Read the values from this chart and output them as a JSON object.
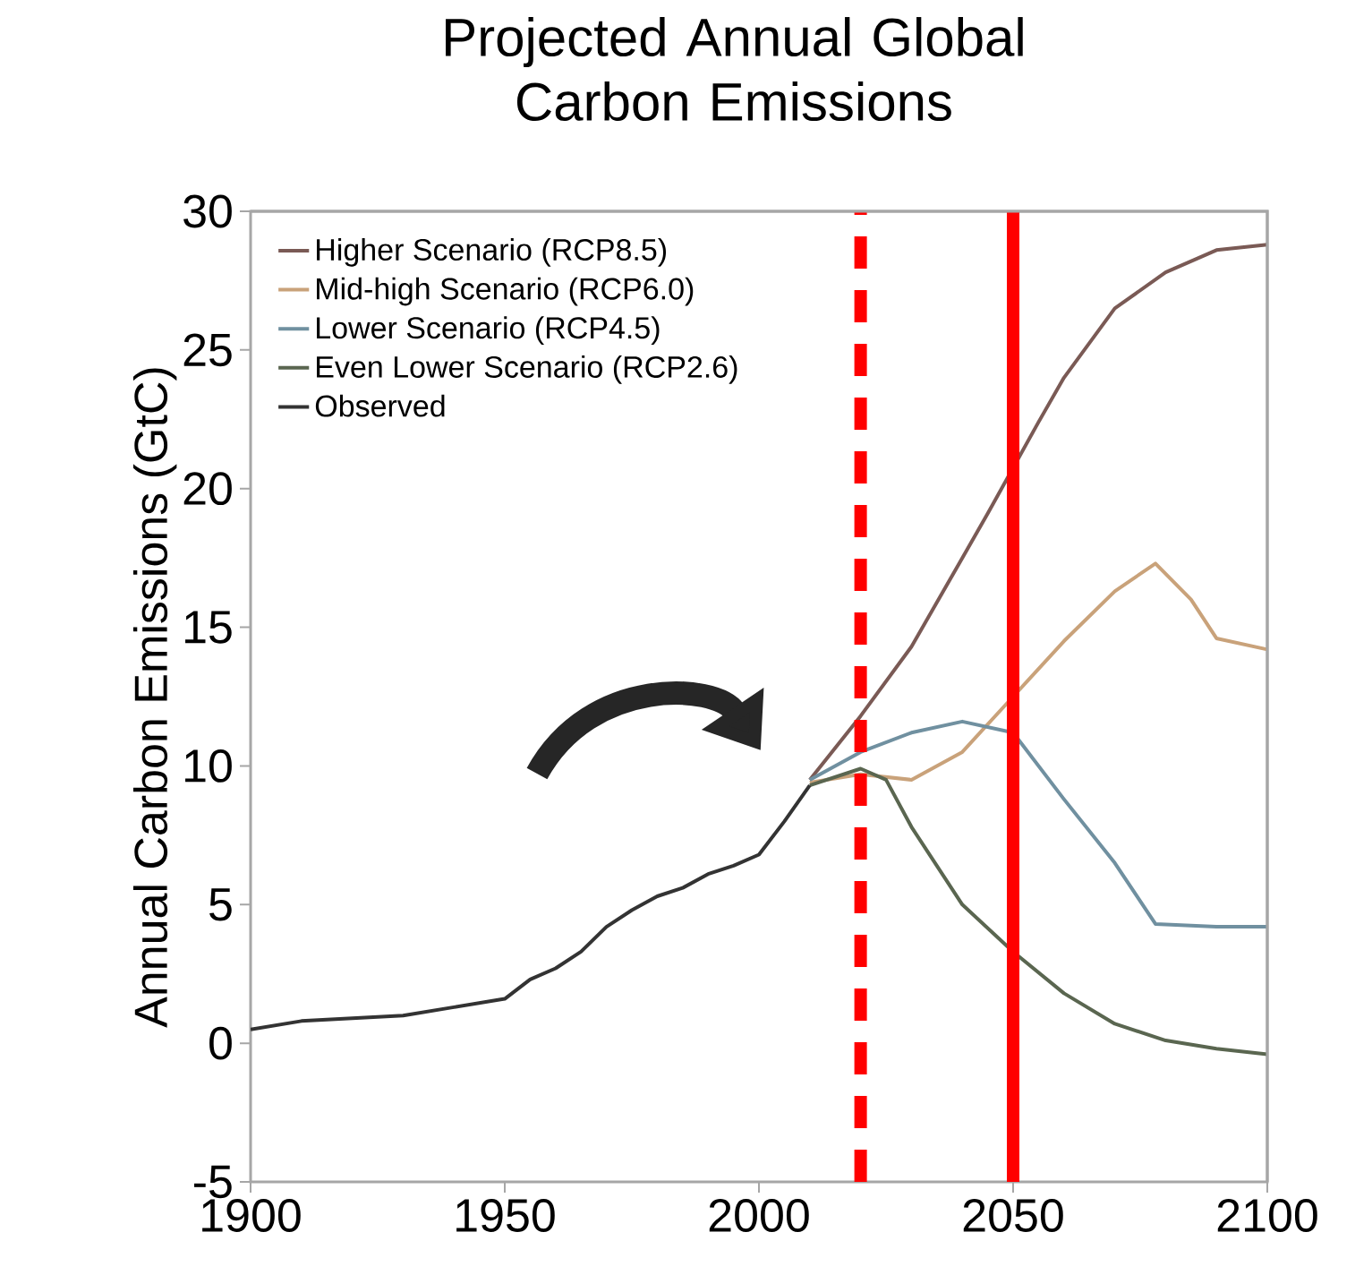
{
  "chart_data": {
    "type": "line",
    "title": "Projected Annual Global Carbon Emissions",
    "ylabel": "Annual Carbon Emissions (GtC)",
    "xlim": [
      1900,
      2100
    ],
    "xticks": [
      1900,
      1950,
      2000,
      2050,
      2100
    ],
    "ylim": [
      -5,
      30
    ],
    "yticks": [
      -5,
      0,
      5,
      10,
      15,
      20,
      25,
      30
    ],
    "legend": "top left",
    "grid": false,
    "line_style": "solid",
    "marker": "none",
    "series": [
      {
        "name": "Higher Scenario (RCP8.5)",
        "color": "#7a5a55",
        "x": [
          2010,
          2020,
          2030,
          2040,
          2045,
          2055,
          2060,
          2070,
          2080,
          2090,
          2100
        ],
        "values": [
          9.5,
          11.8,
          14.3,
          17.5,
          19.1,
          22.4,
          24,
          26.5,
          27.8,
          28.6,
          28.8
        ]
      },
      {
        "name": "Mid-high Scenario (RCP6.0)",
        "color": "#c9a27a",
        "x": [
          2010,
          2020,
          2030,
          2040,
          2050,
          2060,
          2070,
          2078,
          2085,
          2090,
          2100
        ],
        "values": [
          9.4,
          9.7,
          9.5,
          10.5,
          12.5,
          14.5,
          16.3,
          17.3,
          16,
          14.6,
          14.2
        ]
      },
      {
        "name": "Lower Scenario (RCP4.5)",
        "color": "#7090a0",
        "x": [
          2010,
          2020,
          2030,
          2040,
          2050,
          2060,
          2070,
          2078,
          2090,
          2100
        ],
        "values": [
          9.5,
          10.5,
          11.2,
          11.6,
          11.2,
          8.8,
          6.5,
          4.3,
          4.2,
          4.2
        ]
      },
      {
        "name": "Even Lower Scenario (RCP2.6)",
        "color": "#5a6650",
        "x": [
          2010,
          2020,
          2025,
          2030,
          2040,
          2050,
          2060,
          2070,
          2080,
          2090,
          2100
        ],
        "values": [
          9.3,
          9.9,
          9.5,
          7.8,
          5.0,
          3.3,
          1.8,
          0.7,
          0.1,
          -0.2,
          -0.4
        ]
      },
      {
        "name": "Observed",
        "color": "#333333",
        "x": [
          1900,
          1910,
          1920,
          1930,
          1940,
          1950,
          1955,
          1960,
          1965,
          1970,
          1975,
          1980,
          1985,
          1990,
          1995,
          2000,
          2005,
          2010
        ],
        "values": [
          0.5,
          0.8,
          0.9,
          1.0,
          1.3,
          1.6,
          2.3,
          2.7,
          3.3,
          4.2,
          4.8,
          5.3,
          5.6,
          6.1,
          6.4,
          6.8,
          8.0,
          9.3
        ]
      }
    ],
    "ref_lines": [
      {
        "axis": "x",
        "value": 2020,
        "color": "#ff0000",
        "line_style": "dashed"
      },
      {
        "axis": "x",
        "value": 2050,
        "color": "#ff0000",
        "line_style": "solid"
      }
    ]
  }
}
